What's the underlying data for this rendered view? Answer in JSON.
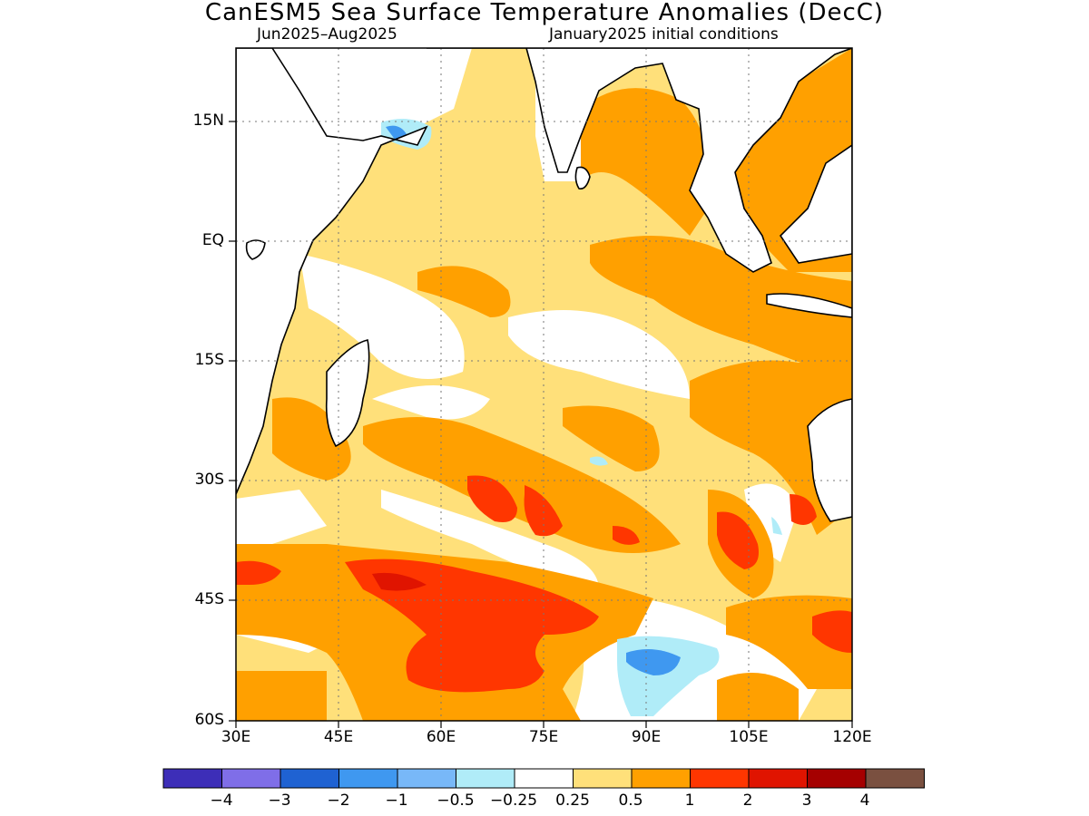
{
  "title": "CanESM5 Sea Surface Temperature Anomalies (DecC)",
  "period": "Jun2025–Aug2025",
  "initial_conditions": "January2025 initial conditions",
  "lat_labels": [
    "15N",
    "EQ",
    "15S",
    "30S",
    "45S",
    "60S"
  ],
  "lon_labels": [
    "30E",
    "45E",
    "60E",
    "75E",
    "90E",
    "105E",
    "120E"
  ],
  "colorbar": {
    "labels": [
      "−4",
      "−3",
      "−2",
      "−1",
      "−0.5",
      "−0.25",
      "0.25",
      "0.5",
      "1",
      "2",
      "3",
      "4"
    ],
    "colors": [
      "#3d2eb8",
      "#7f6ee8",
      "#1f62d2",
      "#3f98f0",
      "#78b8f8",
      "#b0ecf8",
      "#ffffff",
      "#ffe07a",
      "#ffa000",
      "#ff3600",
      "#e01400",
      "#a50000",
      "#7a5040"
    ]
  },
  "map": {
    "region": "Indian Ocean",
    "lon_range": [
      30,
      120
    ],
    "lat_range": [
      -60,
      24
    ],
    "ocean_background": "#ffe07a"
  }
}
